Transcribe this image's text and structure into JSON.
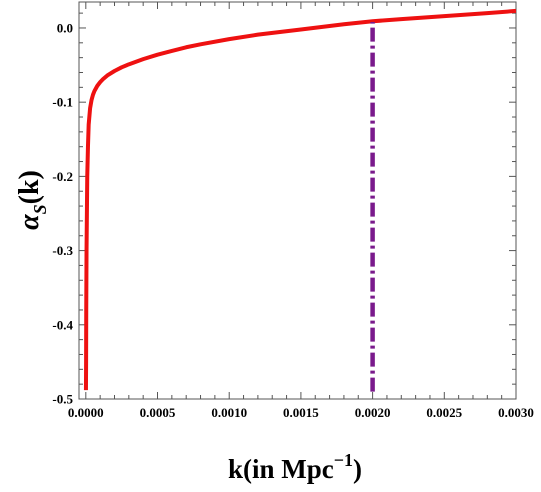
{
  "chart_data": {
    "type": "line",
    "title": "",
    "xlabel": {
      "base": "k(in Mpc",
      "superscript": "−1",
      "close": ")"
    },
    "ylabel": {
      "symbol": "α",
      "subscript": "S",
      "arg": "(k)"
    },
    "xlim": [
      -4.75e-05,
      0.003
    ],
    "ylim": [
      -0.5,
      0.035
    ],
    "x_ticks": [
      0.0,
      0.0005,
      0.001,
      0.0015,
      0.002,
      0.0025,
      0.003
    ],
    "x_tick_labels": [
      "0.0000",
      "0.0005",
      "0.0010",
      "0.0015",
      "0.0020",
      "0.0025",
      "0.0030"
    ],
    "y_ticks": [
      0.0,
      -0.1,
      -0.2,
      -0.3,
      -0.4,
      -0.5
    ],
    "y_tick_labels": [
      "0.0",
      "-0.1",
      "-0.2",
      "-0.3",
      "-0.4",
      "-0.5"
    ],
    "grid": false,
    "series": [
      {
        "style": "solid",
        "color": "#ee1111",
        "x": [
          1e-06,
          2e-06,
          3e-06,
          5e-06,
          8e-06,
          1e-05,
          1.5e-05,
          2e-05,
          3e-05,
          4e-05,
          5e-05,
          6e-05,
          8e-05,
          0.0001,
          0.00012,
          0.00015,
          0.0002,
          0.00025,
          0.0003,
          0.0004,
          0.0005,
          0.0006,
          0.0007,
          0.0008,
          0.001,
          0.0012,
          0.0015,
          0.0018,
          0.002,
          0.0022,
          0.0025,
          0.0028,
          0.003
        ],
        "y": [
          -0.488,
          -0.45,
          -0.38,
          -0.3,
          -0.24,
          -0.2,
          -0.16,
          -0.13,
          -0.108,
          -0.097,
          -0.09,
          -0.085,
          -0.078,
          -0.073,
          -0.069,
          -0.064,
          -0.058,
          -0.053,
          -0.049,
          -0.042,
          -0.036,
          -0.031,
          -0.026,
          -0.022,
          -0.015,
          -0.009,
          -0.002,
          0.005,
          0.009,
          0.012,
          0.016,
          0.02,
          0.023
        ]
      },
      {
        "style": "dashed",
        "color": "#7a1a8c",
        "x": [
          0.002,
          0.002
        ],
        "y": [
          -0.49,
          0.008
        ]
      }
    ]
  }
}
